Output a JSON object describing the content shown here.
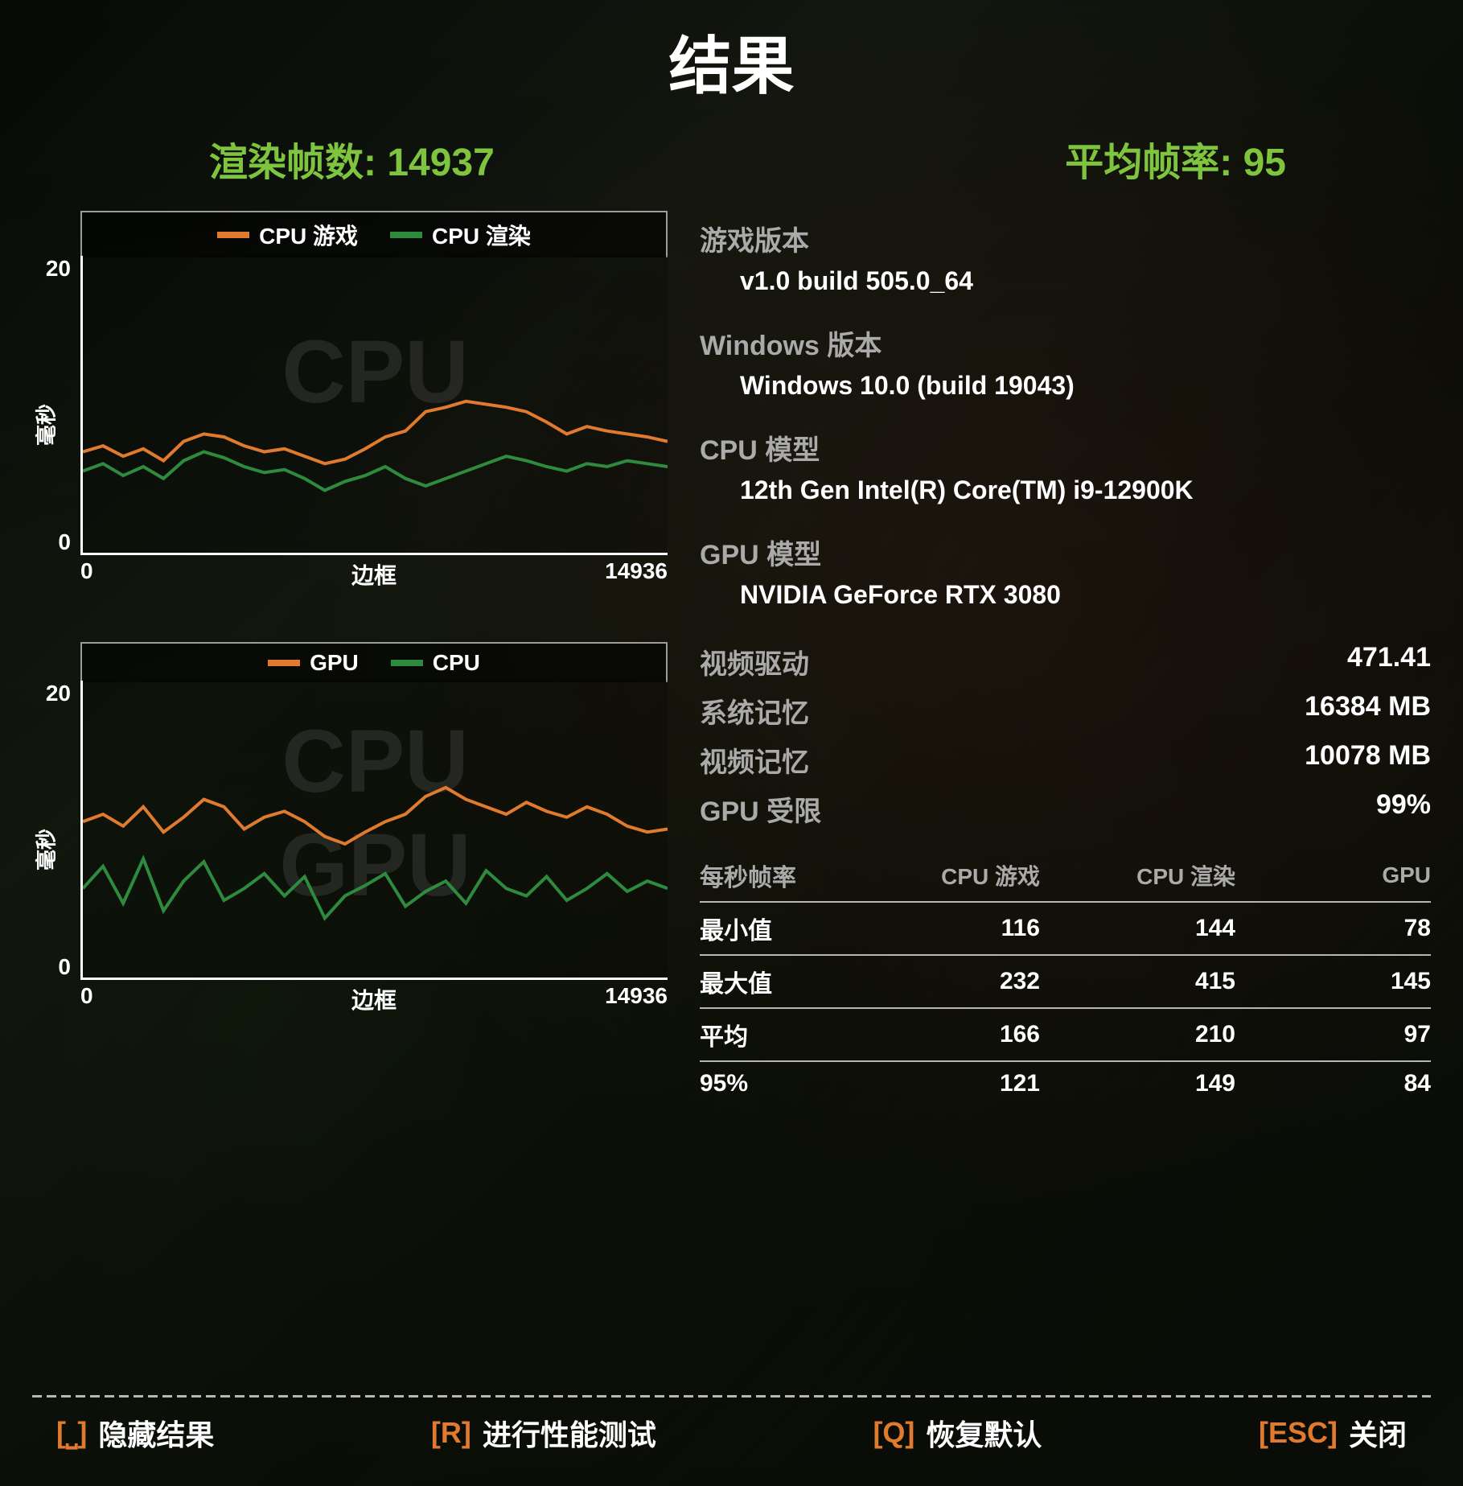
{
  "title": "结果",
  "summary": {
    "frames_label": "渲染帧数:",
    "frames_value": "14937",
    "avg_fps_label": "平均帧率:",
    "avg_fps_value": "95"
  },
  "colors": {
    "accent": "#7ec43e",
    "series_orange": "#e07a2e",
    "series_green": "#2e8b3e",
    "axis": "#ffffff",
    "grey_text": "#aaaaaa",
    "watermark": "rgba(80,80,80,0.35)"
  },
  "chart1": {
    "type": "line",
    "legend": [
      {
        "label": "CPU 游戏",
        "color": "#e07a2e"
      },
      {
        "label": "CPU 渲染",
        "color": "#2e8b3e"
      }
    ],
    "ylim": [
      0,
      20
    ],
    "y_ticks": [
      "20",
      "0"
    ],
    "y_label": "毫秒",
    "x_ticks": [
      "0",
      "14936"
    ],
    "x_label": "边框",
    "watermark": "CPU",
    "watermark_top_pct": 22,
    "series": [
      {
        "color": "#e07a2e",
        "width": 4,
        "points": [
          6.8,
          7.2,
          6.5,
          7.0,
          6.2,
          7.5,
          8.0,
          7.8,
          7.2,
          6.8,
          7.0,
          6.5,
          6.0,
          6.3,
          7.0,
          7.8,
          8.2,
          9.5,
          9.8,
          10.2,
          10.0,
          9.8,
          9.5,
          8.8,
          8.0,
          8.5,
          8.2,
          8.0,
          7.8,
          7.5
        ]
      },
      {
        "color": "#2e8b3e",
        "width": 4,
        "points": [
          5.5,
          6.0,
          5.2,
          5.8,
          5.0,
          6.2,
          6.8,
          6.4,
          5.8,
          5.4,
          5.6,
          5.0,
          4.2,
          4.8,
          5.2,
          5.8,
          5.0,
          4.5,
          5.0,
          5.5,
          6.0,
          6.5,
          6.2,
          5.8,
          5.5,
          6.0,
          5.8,
          6.2,
          6.0,
          5.8
        ]
      }
    ]
  },
  "chart2": {
    "type": "line",
    "legend": [
      {
        "label": "GPU",
        "color": "#e07a2e"
      },
      {
        "label": "CPU",
        "color": "#2e8b3e"
      }
    ],
    "ylim": [
      0,
      20
    ],
    "y_ticks": [
      "20",
      "0"
    ],
    "y_label": "毫秒",
    "x_ticks": [
      "0",
      "14936"
    ],
    "x_label": "边框",
    "watermarks": [
      {
        "text": "CPU",
        "top_pct": 10
      },
      {
        "text": "GPU",
        "top_pct": 45
      }
    ],
    "series": [
      {
        "color": "#e07a2e",
        "width": 4,
        "points": [
          10.5,
          11.0,
          10.2,
          11.5,
          9.8,
          10.8,
          12.0,
          11.5,
          10.0,
          10.8,
          11.2,
          10.5,
          9.5,
          9.0,
          9.8,
          10.5,
          11.0,
          12.2,
          12.8,
          12.0,
          11.5,
          11.0,
          11.8,
          11.2,
          10.8,
          11.5,
          11.0,
          10.2,
          9.8,
          10.0
        ]
      },
      {
        "color": "#2e8b3e",
        "width": 4,
        "points": [
          6.0,
          7.5,
          5.0,
          8.0,
          4.5,
          6.5,
          7.8,
          5.2,
          6.0,
          7.0,
          5.5,
          6.8,
          4.0,
          5.5,
          6.2,
          7.0,
          4.8,
          5.8,
          6.5,
          5.0,
          7.2,
          6.0,
          5.5,
          6.8,
          5.2,
          6.0,
          7.0,
          5.8,
          6.5,
          6.0
        ]
      }
    ]
  },
  "info": {
    "game_version": {
      "label": "游戏版本",
      "value": "v1.0 build 505.0_64"
    },
    "windows_version": {
      "label": "Windows 版本",
      "value": "Windows 10.0 (build 19043)"
    },
    "cpu_model": {
      "label": "CPU 模型",
      "value": "12th Gen Intel(R) Core(TM) i9-12900K"
    },
    "gpu_model": {
      "label": "GPU 模型",
      "value": "NVIDIA GeForce RTX 3080"
    }
  },
  "stats": [
    {
      "label": "视频驱动",
      "value": "471.41"
    },
    {
      "label": "系统记忆",
      "value": "16384 MB"
    },
    {
      "label": "视频记忆",
      "value": "10078 MB"
    },
    {
      "label": "GPU 受限",
      "value": "99%"
    }
  ],
  "fps_table": {
    "header": [
      "每秒帧率",
      "CPU 游戏",
      "CPU 渲染",
      "GPU"
    ],
    "rows": [
      {
        "label": "最小值",
        "cells": [
          "116",
          "144",
          "78"
        ]
      },
      {
        "label": "最大值",
        "cells": [
          "232",
          "415",
          "145"
        ]
      },
      {
        "label": "平均",
        "cells": [
          "166",
          "210",
          "97"
        ]
      },
      {
        "label": "95%",
        "cells": [
          "121",
          "149",
          "84"
        ]
      }
    ]
  },
  "hotkeys": [
    {
      "key": "⎵",
      "bracket_key": "⎵",
      "label": "隐藏结果"
    },
    {
      "key": "R",
      "bracket_key": "R",
      "label": "进行性能测试"
    },
    {
      "key": "Q",
      "bracket_key": "Q",
      "label": "恢复默认"
    },
    {
      "key": "ESC",
      "bracket_key": "ESC",
      "label": "关闭"
    }
  ]
}
